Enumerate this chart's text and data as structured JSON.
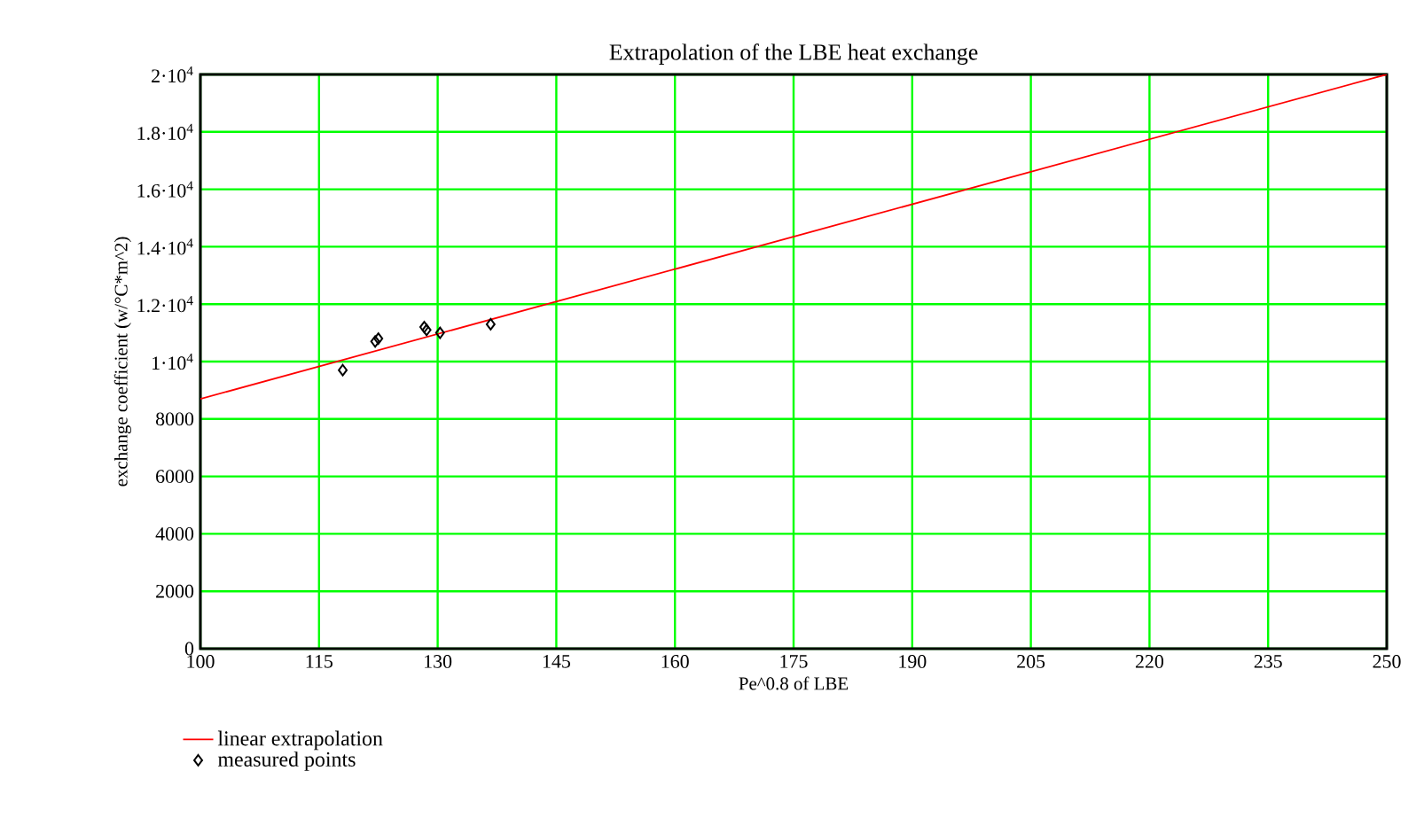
{
  "chart_data": {
    "type": "scatter",
    "title": "Extrapolation of the LBE heat exchange",
    "xlabel": "Pe^0.8 of LBE",
    "ylabel": "exchange coefficient (w/°C*m^2)",
    "xlim": [
      100,
      250
    ],
    "xticks": [
      100,
      115,
      130,
      145,
      160,
      175,
      190,
      205,
      220,
      235,
      250
    ],
    "ylim": [
      0,
      20000
    ],
    "yticks": [
      0,
      2000,
      4000,
      6000,
      8000,
      {
        "value": 10000,
        "label": "1·10$^{4}$"
      },
      {
        "value": 12000,
        "label": "1.2·10$^{4}$"
      },
      {
        "value": 14000,
        "label": "1.4·10$^{4}$"
      },
      {
        "value": 16000,
        "label": "1.6·10$^{4}$"
      },
      {
        "value": 18000,
        "label": "1.8·10$^{4}$"
      },
      {
        "value": 20000,
        "label": "2·10$^{4}$"
      }
    ],
    "grid": true,
    "legend": "bottom left",
    "series": [
      {
        "name": "linear extrapolation",
        "type": "line",
        "color": "#ff0000",
        "marker": "none",
        "line_style": "solid",
        "x": [
          100,
          250
        ],
        "values": [
          8700,
          20000
        ]
      },
      {
        "name": "measured points",
        "color": "#000000",
        "marker": "diamond",
        "x": [
          118.0,
          122.1,
          122.5,
          128.3,
          128.6,
          130.3,
          136.7
        ],
        "values": [
          9700,
          10700,
          10800,
          11200,
          11100,
          11000,
          11300
        ]
      }
    ]
  }
}
